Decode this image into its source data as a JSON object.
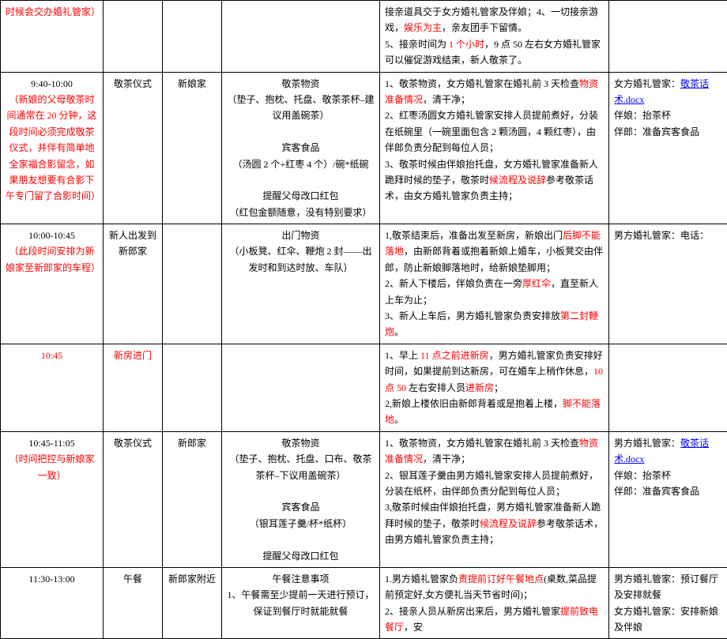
{
  "colors": {
    "red": "#ff0000",
    "blue": "#0000ff",
    "black": "#000000",
    "border": "#000000"
  },
  "rows": [
    {
      "time": [
        {
          "t": "时候会交办婚礼管家）",
          "c": "red"
        }
      ],
      "event": [],
      "loc": [],
      "mat": [],
      "proc": [
        {
          "t": "接亲道具交于女方婚礼管家及伴娘；",
          "c": "black"
        },
        {
          "t": "4、一切接亲游戏，",
          "c": "black"
        },
        {
          "t": "娱乐为主",
          "c": "red"
        },
        {
          "t": "，亲友团手下留情。",
          "c": "black"
        },
        {
          "t": "\n5、接亲时间为 ",
          "c": "black"
        },
        {
          "t": "1 个小时",
          "c": "red"
        },
        {
          "t": "，9 点 50 左右女方婚礼管家可以催促游戏结束，新人敬茶了。",
          "c": "black"
        }
      ],
      "owner": []
    },
    {
      "time": [
        {
          "t": "9:40-10:00",
          "c": "black"
        },
        {
          "t": "\n（新娘的父母敬茶时间通常在 20 分钟，这段时间必须完成敬茶仪式，并伴有简单地全家福合影留念，如果朋友想要有合影下午专门留了合影时间）",
          "c": "red"
        }
      ],
      "event": [
        {
          "t": "敬茶仪式",
          "c": "black"
        }
      ],
      "loc": [
        {
          "t": "新娘家",
          "c": "black"
        }
      ],
      "mat": [
        {
          "t": "敬茶物资",
          "c": "black"
        },
        {
          "t": "\n（垫子、抱枕、托盘、敬茶茶杯–建议用盖碗茶）",
          "c": "black"
        },
        {
          "t": "\n\n宾客食品",
          "c": "black"
        },
        {
          "t": "\n（汤圆 2 个+红枣 4 个）/碗*纸碗",
          "c": "black"
        },
        {
          "t": "\n\n提醒父母改口红包",
          "c": "black"
        },
        {
          "t": "\n（红包金额随意，没有特别要求）",
          "c": "black"
        }
      ],
      "proc": [
        {
          "t": "1、敬茶物资，女方婚礼管家在婚礼前 3 天检查",
          "c": "black"
        },
        {
          "t": "物资准备情况",
          "c": "red"
        },
        {
          "t": "，清干净；",
          "c": "black"
        },
        {
          "t": "\n2、红枣汤圆女方婚礼管家安排人员提前煮好，分装在纸碗里（一碗里面包含 2 颗汤圆，4 颗红枣），由伴郎负责分配到每位人员；",
          "c": "black"
        },
        {
          "t": "\n3、敬茶时候由伴娘抬托盘，女方婚礼管家准备新人跪拜时候的垫子，敬茶时",
          "c": "black"
        },
        {
          "t": "候流程及说辞",
          "c": "red"
        },
        {
          "t": "参考敬茶话术，由女方婚礼管家负责主持；",
          "c": "black"
        }
      ],
      "owner": [
        {
          "t": "女方婚礼管家：",
          "c": "black"
        },
        {
          "t": "敬茶话术.docx",
          "c": "blue"
        },
        {
          "t": "\n伴娘：抬茶杯",
          "c": "black"
        },
        {
          "t": "\n伴郎：准备宾客食品",
          "c": "black"
        }
      ]
    },
    {
      "time": [
        {
          "t": "10:00-10:45",
          "c": "black"
        },
        {
          "t": "\n（此段时间安排为新娘家至新郎家的车程）",
          "c": "red"
        }
      ],
      "event": [
        {
          "t": "新人出发到新郎家",
          "c": "black"
        }
      ],
      "loc": [],
      "mat": [
        {
          "t": "出门物资",
          "c": "black"
        },
        {
          "t": "\n（小板凳、红伞、鞭炮 2 封——出发时和到达时放、车队）",
          "c": "black"
        }
      ],
      "proc": [
        {
          "t": "1,敬茶结束后，准备出发至新房，新娘出门",
          "c": "black"
        },
        {
          "t": "后脚不能落地",
          "c": "red"
        },
        {
          "t": "，由新郎背着或抱着新娘上婚车，小板凳交由伴郎，防止新娘脚落地时，给新娘垫脚用；",
          "c": "black"
        },
        {
          "t": "\n2、新人下楼后，伴娘负责在一旁",
          "c": "black"
        },
        {
          "t": "厚红伞",
          "c": "red"
        },
        {
          "t": "，直至新人上车为止；",
          "c": "black"
        },
        {
          "t": "\n3、新人上车后，男方婚礼管家负责安排放",
          "c": "black"
        },
        {
          "t": "第二封鞭炮",
          "c": "red"
        },
        {
          "t": "。",
          "c": "black"
        }
      ],
      "owner": [
        {
          "t": "男方婚礼管家：电话：",
          "c": "black"
        }
      ]
    },
    {
      "time": [
        {
          "t": "10:45",
          "c": "red"
        }
      ],
      "event": [
        {
          "t": "新房进门",
          "c": "red"
        }
      ],
      "loc": [],
      "mat": [],
      "proc": [
        {
          "t": "1、早上 ",
          "c": "black"
        },
        {
          "t": "11 点之前进新房",
          "c": "red"
        },
        {
          "t": "，男方婚礼管家负责安排好时间，如果提前到达新房，可在婚车上稍作休息，",
          "c": "black"
        },
        {
          "t": "10 点 50 ",
          "c": "red"
        },
        {
          "t": "左右安排人员",
          "c": "black"
        },
        {
          "t": "进新房",
          "c": "red"
        },
        {
          "t": "；",
          "c": "black"
        },
        {
          "t": "\n2,新娘上楼依旧由新郎背着或是抱着上楼，",
          "c": "black"
        },
        {
          "t": "脚不能落地",
          "c": "red"
        },
        {
          "t": "。",
          "c": "black"
        }
      ],
      "owner": []
    },
    {
      "time": [
        {
          "t": "10:45-11:05",
          "c": "black"
        },
        {
          "t": "\n（时间把控与新娘家一致）",
          "c": "red"
        }
      ],
      "event": [
        {
          "t": "敬茶仪式",
          "c": "black"
        }
      ],
      "loc": [
        {
          "t": "新郎家",
          "c": "black"
        }
      ],
      "mat": [
        {
          "t": "敬茶物资",
          "c": "black"
        },
        {
          "t": "\n（垫子、抱枕、托盘、口布、敬茶茶杯–下议用盖碗茶）",
          "c": "black"
        },
        {
          "t": "\n\n宾客食品",
          "c": "black"
        },
        {
          "t": "\n（银耳莲子羹/杯*纸杯）",
          "c": "black"
        },
        {
          "t": "\n\n提醒父母改口红包",
          "c": "black"
        }
      ],
      "proc": [
        {
          "t": "1、敬茶物资，女方婚礼管家在婚礼前 3 天检查",
          "c": "black"
        },
        {
          "t": "物资准备情况",
          "c": "red"
        },
        {
          "t": "，清干净；",
          "c": "black"
        },
        {
          "t": "\n2、银耳莲子羹由男方婚礼管家安排人员提前煮好，分装在纸杯，由伴郎负责分配到每位人员；",
          "c": "black"
        },
        {
          "t": "\n3,敬茶时候由伴娘抬托盘，男方婚礼管家准备新人跪拜时候的垫子，敬茶时",
          "c": "black"
        },
        {
          "t": "候流程及说辞",
          "c": "red"
        },
        {
          "t": "参考敬茶话术，由男方婚礼管家负责主持；",
          "c": "black"
        }
      ],
      "owner": [
        {
          "t": "男方婚礼管家：",
          "c": "black"
        },
        {
          "t": "敬茶话术.docx",
          "c": "blue"
        },
        {
          "t": "\n伴娘：抬茶杯",
          "c": "black"
        },
        {
          "t": "\n伴郎：准备宾客食品",
          "c": "black"
        }
      ]
    },
    {
      "time": [
        {
          "t": "11:30-13:00",
          "c": "black"
        }
      ],
      "event": [
        {
          "t": "午餐",
          "c": "black"
        }
      ],
      "loc": [
        {
          "t": "新郎家附近",
          "c": "black"
        }
      ],
      "mat": [
        {
          "t": "午餐注意事项",
          "c": "black"
        },
        {
          "t": "\n1、午餐需至少提前一天进行预订，保证到餐厅时就能就餐",
          "c": "black"
        }
      ],
      "proc": [
        {
          "t": "1.男方婚礼管家负",
          "c": "black"
        },
        {
          "t": "责提前订好午餐地点",
          "c": "red"
        },
        {
          "t": "(桌数,菜品提前预定好,女方便礼当天节省时间)；",
          "c": "black"
        },
        {
          "t": "\n2、接亲人员从新房出来后，男方婚礼管家",
          "c": "black"
        },
        {
          "t": "提前致电餐厅",
          "c": "red"
        },
        {
          "t": "，安",
          "c": "black"
        }
      ],
      "owner": [
        {
          "t": "男方婚礼管家：预订餐厅及安排就餐",
          "c": "black"
        },
        {
          "t": "\n女方婚礼管家：安排新娘及伴娘",
          "c": "black"
        }
      ]
    }
  ]
}
